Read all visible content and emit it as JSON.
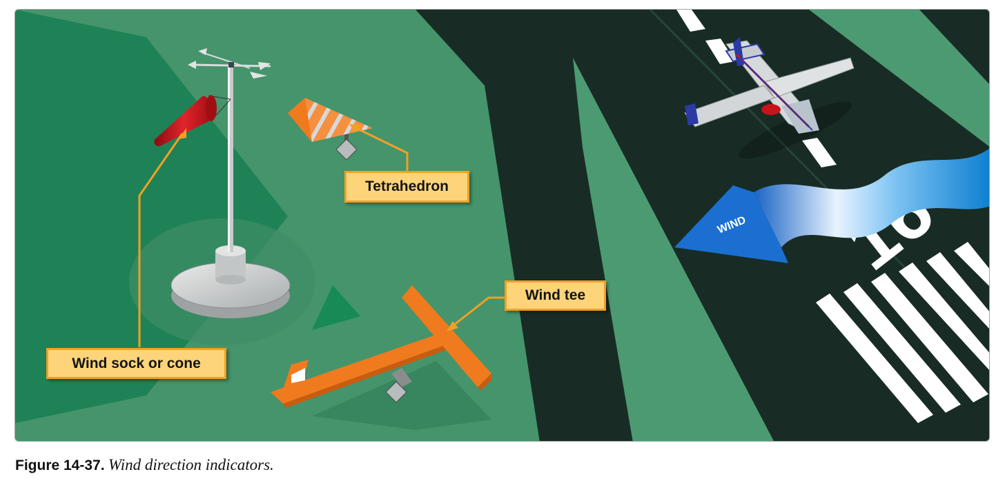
{
  "labels": {
    "wind_sock": "Wind sock or cone",
    "tetrahedron": "Tetrahedron",
    "wind_tee": "Wind tee",
    "wind_arrow": "WIND",
    "runway_number": "16"
  },
  "caption": {
    "figure_number": "Figure 14-37.",
    "text": "Wind direction indicators."
  },
  "colors": {
    "grass_light": "#45946b",
    "grass_dark": "#1f8257",
    "tarmac": "#182c25",
    "callout_fill": "#fdd47a",
    "callout_border": "#f2a025",
    "indicator_orange": "#f07a1e",
    "wind_sock_red": "#c8131a",
    "wind_blue": "#1f7fd4"
  }
}
